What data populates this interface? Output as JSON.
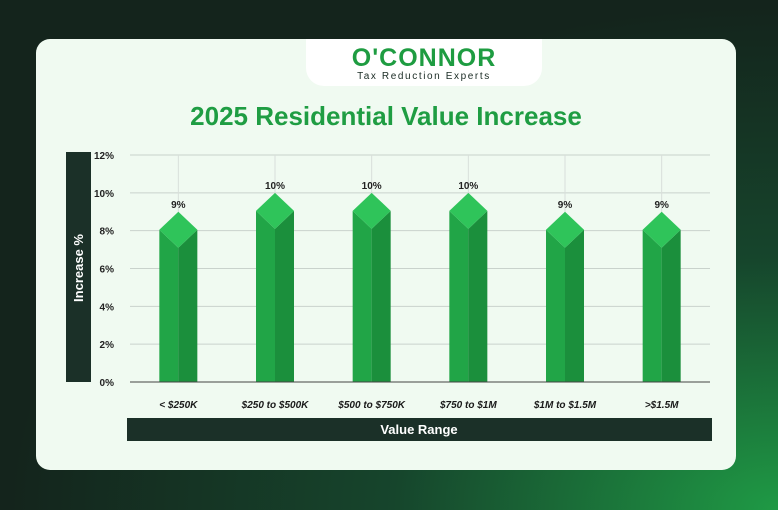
{
  "brand": {
    "name": "O'CONNOR",
    "tagline": "Tax Reduction Experts"
  },
  "colors": {
    "bar_front": "#21a547",
    "bar_side": "#1b8f3c",
    "bar_top": "#2fc45a",
    "axis_band": "#1b3028",
    "title": "#1f9d43",
    "grid": "#c9d2cc"
  },
  "chart_data": {
    "type": "bar",
    "title": "2025 Residential Value Increase",
    "xlabel": "Value Range",
    "ylabel": "Increase %",
    "categories": [
      "< $250K",
      "$250 to $500K",
      "$500 to $750K",
      "$750 to $1M",
      "$1M to $1.5M",
      ">$1.5M"
    ],
    "values": [
      9,
      10,
      10,
      10,
      9,
      9
    ],
    "data_labels": [
      "9%",
      "10%",
      "10%",
      "10%",
      "9%",
      "9%"
    ],
    "ylim": [
      0,
      12
    ],
    "yticks": [
      0,
      2,
      4,
      6,
      8,
      10,
      12
    ],
    "ytick_labels": [
      "0%",
      "2%",
      "4%",
      "6%",
      "8%",
      "10%",
      "12%"
    ],
    "grid": true,
    "legend": "none"
  }
}
